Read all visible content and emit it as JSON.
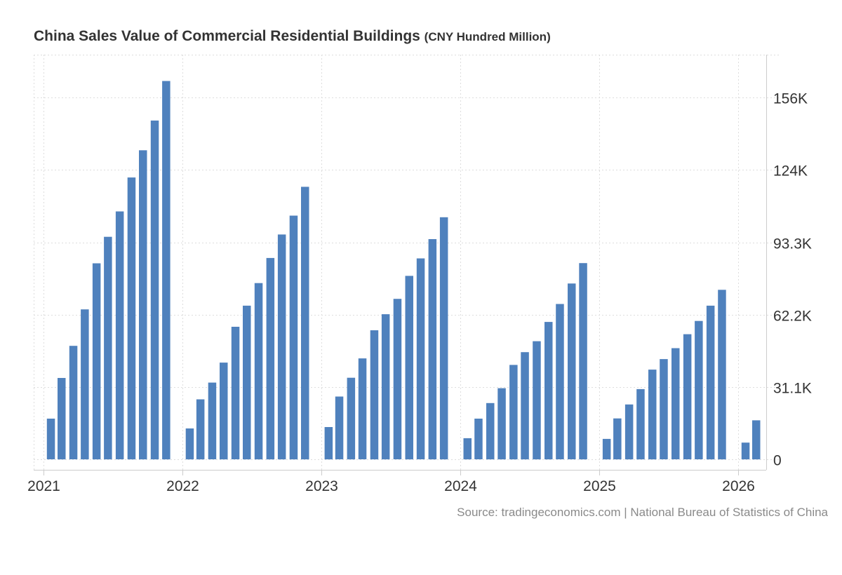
{
  "chart_data": {
    "type": "bar",
    "title": "China Sales Value of Commercial Residential Buildings",
    "unit": "(CNY Hundred Million)",
    "source": "Source: tradingeconomics.com | National Bureau of Statistics of China",
    "x_tick_labels": [
      "2021",
      "2022",
      "2023",
      "2024",
      "2025",
      "2026"
    ],
    "y_tick_labels": [
      "0",
      "31.1K",
      "62.2K",
      "93.3K",
      "124K",
      "156K"
    ],
    "y_tick_values": [
      0,
      31100,
      62200,
      93300,
      124400,
      155500
    ],
    "ylim": [
      -4500,
      174000
    ],
    "grid": true,
    "y_axis_side": "right",
    "bar_color": "#4f81bd",
    "categories": [
      "2021-02",
      "2021-03",
      "2021-04",
      "2021-05",
      "2021-06",
      "2021-07",
      "2021-08",
      "2021-09",
      "2021-10",
      "2021-11",
      "2021-12",
      "2022-02",
      "2022-03",
      "2022-04",
      "2022-05",
      "2022-06",
      "2022-07",
      "2022-08",
      "2022-09",
      "2022-10",
      "2022-11",
      "2022-12",
      "2023-02",
      "2023-03",
      "2023-04",
      "2023-05",
      "2023-06",
      "2023-07",
      "2023-08",
      "2023-09",
      "2023-10",
      "2023-11",
      "2023-12",
      "2024-02",
      "2024-03",
      "2024-04",
      "2024-05",
      "2024-06",
      "2024-07",
      "2024-08",
      "2024-09",
      "2024-10",
      "2024-11",
      "2024-12",
      "2025-02",
      "2025-03",
      "2025-04",
      "2025-05",
      "2025-06",
      "2025-07",
      "2025-08",
      "2025-09",
      "2025-10",
      "2025-11",
      "2025-12",
      "2026-02",
      "2026-03"
    ],
    "values": [
      17500,
      35000,
      48800,
      64500,
      84300,
      95700,
      106600,
      121200,
      132900,
      145700,
      162700,
      13300,
      25800,
      33000,
      41600,
      57000,
      66100,
      75800,
      86600,
      96700,
      104800,
      117200,
      13900,
      27000,
      35100,
      43400,
      55500,
      62400,
      69000,
      78900,
      86400,
      94700,
      104100,
      9100,
      17500,
      24200,
      30600,
      40600,
      46100,
      50800,
      59100,
      66800,
      75600,
      84400,
      8800,
      17600,
      23600,
      30200,
      38600,
      43100,
      47800,
      53800,
      59500,
      66100,
      72900,
      7200,
      16800
    ]
  }
}
